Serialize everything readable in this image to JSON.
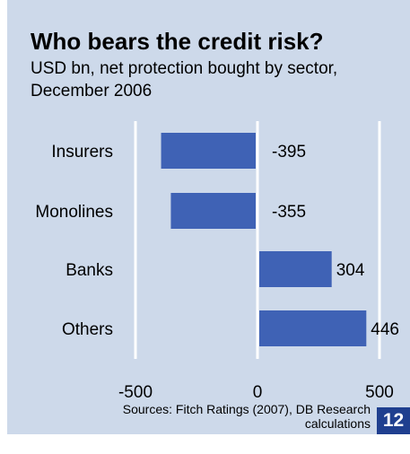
{
  "chart_data": {
    "type": "bar",
    "orientation": "horizontal",
    "title": "Who bears the credit risk?",
    "subtitle": "USD bn, net protection bought by sector, December 2006",
    "categories": [
      "Insurers",
      "Monolines",
      "Banks",
      "Others"
    ],
    "values": [
      -395,
      -355,
      304,
      446
    ],
    "value_labels": [
      "-395",
      "-355",
      "304",
      "446"
    ],
    "xlim": [
      -500,
      500
    ],
    "x_ticks": [
      -500,
      0,
      500
    ],
    "x_tick_labels": [
      "-500",
      "0",
      "500"
    ],
    "grid": "vertical lines at -500, 0, 500",
    "bar_color": "#3f62b5",
    "background_color": "#cdd9ea"
  },
  "source": "Sources: Fitch Ratings (2007), DB Research calculations",
  "page_number": "12",
  "colors": {
    "page_number_bg": "#1f3f8f"
  }
}
